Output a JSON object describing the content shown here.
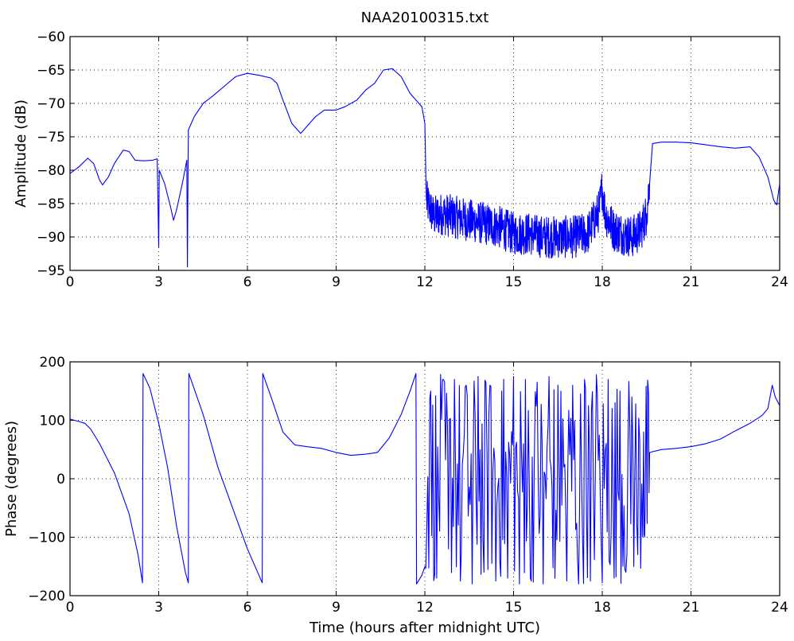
{
  "chart_data": [
    {
      "type": "line",
      "title": "NAA20100315.txt",
      "xlabel": "",
      "ylabel": "Amplitude (dB)",
      "xlim": [
        0,
        24
      ],
      "ylim": [
        -95,
        -60
      ],
      "xticks": [
        "0",
        "3",
        "6",
        "9",
        "12",
        "15",
        "18",
        "21",
        "24"
      ],
      "yticks": [
        "-60",
        "-65",
        "-70",
        "-75",
        "-80",
        "-85",
        "-90",
        "-95"
      ],
      "grid": true,
      "series": [
        {
          "color": "#0000ff",
          "points": [
            [
              0,
              -80.5
            ],
            [
              0.3,
              -79.5
            ],
            [
              0.6,
              -78.2
            ],
            [
              0.8,
              -79.0
            ],
            [
              1.0,
              -81.5
            ],
            [
              1.1,
              -82.2
            ],
            [
              1.3,
              -81.0
            ],
            [
              1.5,
              -79.0
            ],
            [
              1.8,
              -77.0
            ],
            [
              2.0,
              -77.2
            ],
            [
              2.2,
              -78.5
            ],
            [
              2.5,
              -78.6
            ],
            [
              2.8,
              -78.5
            ],
            [
              2.95,
              -78.3
            ],
            [
              3.0,
              -91.5
            ],
            [
              3.02,
              -80.0
            ],
            [
              3.2,
              -82.0
            ],
            [
              3.4,
              -85.5
            ],
            [
              3.5,
              -87.5
            ],
            [
              3.6,
              -86.0
            ],
            [
              3.8,
              -82.0
            ],
            [
              3.95,
              -78.5
            ],
            [
              3.97,
              -94.5
            ],
            [
              4.0,
              -74.0
            ],
            [
              4.2,
              -72.0
            ],
            [
              4.5,
              -70.0
            ],
            [
              4.8,
              -69.0
            ],
            [
              5.2,
              -67.5
            ],
            [
              5.6,
              -66.0
            ],
            [
              6.0,
              -65.5
            ],
            [
              6.4,
              -65.8
            ],
            [
              6.8,
              -66.2
            ],
            [
              7.0,
              -67.0
            ],
            [
              7.2,
              -69.5
            ],
            [
              7.5,
              -73.0
            ],
            [
              7.8,
              -74.5
            ],
            [
              8.0,
              -73.5
            ],
            [
              8.3,
              -72.0
            ],
            [
              8.6,
              -71.0
            ],
            [
              9.0,
              -71.0
            ],
            [
              9.3,
              -70.5
            ],
            [
              9.7,
              -69.5
            ],
            [
              10.0,
              -68.0
            ],
            [
              10.3,
              -67.0
            ],
            [
              10.6,
              -65.0
            ],
            [
              10.9,
              -64.8
            ],
            [
              11.2,
              -66.0
            ],
            [
              11.5,
              -68.5
            ],
            [
              11.9,
              -70.5
            ],
            [
              12.0,
              -73.0
            ],
            [
              12.05,
              -84.5
            ],
            [
              12.3,
              -87.0
            ],
            [
              12.6,
              -86.5
            ],
            [
              13.0,
              -87.0
            ],
            [
              13.5,
              -87.5
            ],
            [
              14.0,
              -88.0
            ],
            [
              14.5,
              -88.5
            ],
            [
              15.0,
              -89.5
            ],
            [
              15.5,
              -89.5
            ],
            [
              16.0,
              -90.0
            ],
            [
              16.5,
              -90.0
            ],
            [
              17.0,
              -90.0
            ],
            [
              17.5,
              -89.5
            ],
            [
              17.9,
              -86.0
            ],
            [
              18.0,
              -82.5
            ],
            [
              18.1,
              -86.5
            ],
            [
              18.4,
              -89.0
            ],
            [
              18.7,
              -89.5
            ],
            [
              19.0,
              -90.0
            ],
            [
              19.3,
              -89.0
            ],
            [
              19.5,
              -86.5
            ],
            [
              19.6,
              -82.0
            ],
            [
              19.7,
              -76.0
            ],
            [
              20.0,
              -75.8
            ],
            [
              20.5,
              -75.8
            ],
            [
              21.0,
              -75.9
            ],
            [
              21.5,
              -76.2
            ],
            [
              22.0,
              -76.5
            ],
            [
              22.5,
              -76.7
            ],
            [
              23.0,
              -76.5
            ],
            [
              23.3,
              -78.0
            ],
            [
              23.6,
              -81.0
            ],
            [
              23.8,
              -84.5
            ],
            [
              23.9,
              -85.2
            ],
            [
              24.0,
              -82.0
            ]
          ],
          "noise": [
            [
              12.05,
              19.6,
              3.2
            ]
          ]
        }
      ]
    },
    {
      "type": "line",
      "title": "",
      "xlabel": "Time (hours after midnight UTC)",
      "ylabel": "Phase (degrees)",
      "xlim": [
        0,
        24
      ],
      "ylim": [
        -200,
        200
      ],
      "xticks": [
        "0",
        "3",
        "6",
        "9",
        "12",
        "15",
        "18",
        "21",
        "24"
      ],
      "yticks": [
        "200",
        "100",
        "0",
        "-100",
        "-200"
      ],
      "grid": true,
      "series": [
        {
          "color": "#0000ff",
          "points": [
            [
              0,
              102
            ],
            [
              0.3,
              98
            ],
            [
              0.5,
              95
            ],
            [
              0.7,
              85
            ],
            [
              1.0,
              60
            ],
            [
              1.5,
              10
            ],
            [
              2.0,
              -60
            ],
            [
              2.3,
              -130
            ],
            [
              2.45,
              -178
            ],
            [
              2.47,
              180
            ],
            [
              2.7,
              155
            ],
            [
              3.0,
              95
            ],
            [
              3.3,
              20
            ],
            [
              3.6,
              -80
            ],
            [
              3.9,
              -160
            ],
            [
              4.0,
              -178
            ],
            [
              4.02,
              180
            ],
            [
              4.5,
              110
            ],
            [
              5.0,
              20
            ],
            [
              5.5,
              -50
            ],
            [
              6.0,
              -120
            ],
            [
              6.5,
              -178
            ],
            [
              6.52,
              180
            ],
            [
              6.8,
              140
            ],
            [
              7.2,
              80
            ],
            [
              7.6,
              58
            ],
            [
              8.0,
              55
            ],
            [
              8.5,
              52
            ],
            [
              9.0,
              45
            ],
            [
              9.5,
              40
            ],
            [
              10.0,
              42
            ],
            [
              10.4,
              45
            ],
            [
              10.8,
              70
            ],
            [
              11.2,
              110
            ],
            [
              11.5,
              150
            ],
            [
              11.7,
              180
            ],
            [
              11.72,
              -180
            ],
            [
              11.9,
              -165
            ],
            [
              12.0,
              -150
            ]
          ]
        },
        {
          "color": "#0000ff",
          "points": [
            [
              12.0,
              -150
            ],
            [
              12.2,
              150
            ],
            [
              12.4,
              -170
            ],
            [
              12.6,
              170
            ],
            [
              12.8,
              -120
            ],
            [
              13.0,
              170
            ],
            [
              13.2,
              -175
            ],
            [
              13.4,
              160
            ],
            [
              13.6,
              -180
            ],
            [
              13.8,
              175
            ],
            [
              14.0,
              -160
            ],
            [
              14.2,
              160
            ],
            [
              14.4,
              -175
            ],
            [
              14.6,
              150
            ],
            [
              14.8,
              -170
            ],
            [
              15.0,
              175
            ],
            [
              15.2,
              -180
            ],
            [
              15.4,
              170
            ],
            [
              15.6,
              -175
            ],
            [
              15.8,
              165
            ],
            [
              16.0,
              -180
            ],
            [
              16.2,
              175
            ],
            [
              16.4,
              -170
            ],
            [
              16.6,
              150
            ],
            [
              16.8,
              -175
            ],
            [
              17.0,
              160
            ],
            [
              17.2,
              -180
            ],
            [
              17.4,
              170
            ],
            [
              17.6,
              -175
            ],
            [
              17.8,
              178
            ],
            [
              18.0,
              -178
            ],
            [
              18.2,
              170
            ],
            [
              18.4,
              -170
            ],
            [
              18.6,
              150
            ],
            [
              18.8,
              -160
            ],
            [
              19.0,
              140
            ],
            [
              19.2,
              -130
            ],
            [
              19.4,
              80
            ],
            [
              19.5,
              60
            ],
            [
              19.6,
              45
            ]
          ]
        },
        {
          "color": "#0000ff",
          "points": [
            [
              19.6,
              45
            ],
            [
              20.0,
              50
            ],
            [
              20.5,
              52
            ],
            [
              21.0,
              55
            ],
            [
              21.5,
              60
            ],
            [
              22.0,
              68
            ],
            [
              22.5,
              82
            ],
            [
              23.0,
              95
            ],
            [
              23.4,
              108
            ],
            [
              23.6,
              120
            ],
            [
              23.75,
              160
            ],
            [
              23.85,
              140
            ],
            [
              24.0,
              125
            ]
          ]
        }
      ]
    }
  ]
}
